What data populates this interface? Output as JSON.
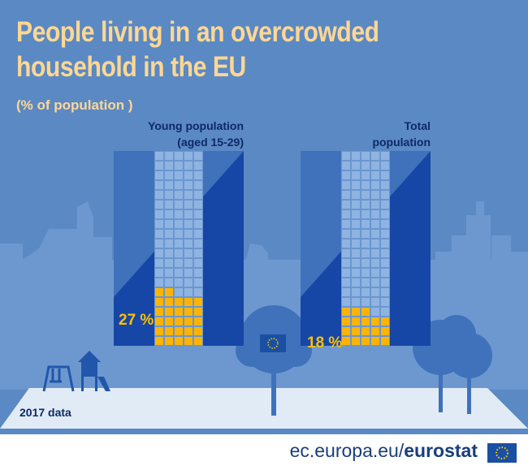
{
  "title_line1": "People living in an overcrowded",
  "title_line2": "household in the EU",
  "subtitle": "(% of population )",
  "year_note": "2017 data",
  "source_prefix": "ec.europa.eu/",
  "source_brand": "eurostat",
  "colors": {
    "background": "#5b89c4",
    "dark_blue": "#1646a6",
    "mid_blue": "#3f72bb",
    "grid_blue": "#6b96cf",
    "highlight": "#ffb400",
    "title": "#ffd793"
  },
  "icons": [
    "eu-flag-icon",
    "swing-icon",
    "playhouse-icon",
    "tree-icon"
  ],
  "chart_data": {
    "type": "bar",
    "title": "People living in an overcrowded household in the EU",
    "unit": "% of population",
    "categories": [
      "Young population (aged 15-29)",
      "Total population"
    ],
    "category_lines": [
      [
        "Young population",
        "(aged 15-29)"
      ],
      [
        "Total",
        "population"
      ]
    ],
    "values": [
      27,
      18
    ],
    "value_labels": [
      "27 %",
      "18 %"
    ],
    "ylim": [
      0,
      100
    ]
  }
}
